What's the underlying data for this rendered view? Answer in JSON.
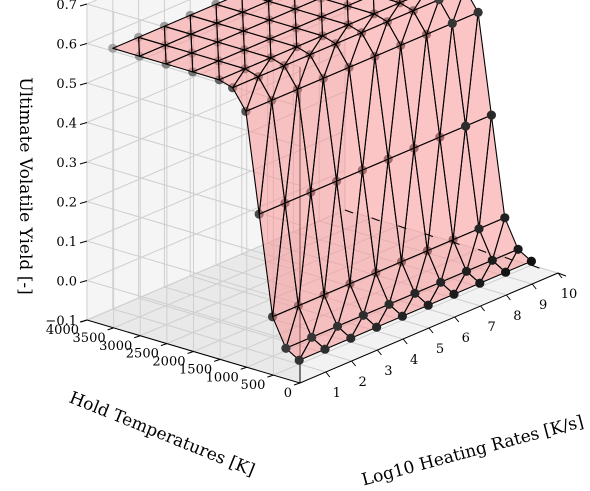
{
  "chart_data": {
    "type": "surface3d",
    "title": "",
    "xlabel": "Log10 Heating Rates [K/s]",
    "ylabel": "Hold Temperatures [K]",
    "zlabel": "Ultimate Volatile Yield [-]",
    "xlim": [
      0,
      10
    ],
    "ylim": [
      0,
      4000
    ],
    "zlim": [
      -0.1,
      0.7
    ],
    "x_ticks": [
      "1",
      "2",
      "3",
      "4",
      "5",
      "6",
      "7",
      "8",
      "9",
      "10"
    ],
    "y_ticks": [
      "0",
      "500",
      "1000",
      "1500",
      "2000",
      "2500",
      "3000",
      "3500",
      "4000"
    ],
    "z_ticks": [
      "−0.1",
      "0.0",
      "0.1",
      "0.2",
      "0.3",
      "0.4",
      "0.5",
      "0.6",
      "0.7"
    ],
    "grid": true,
    "surface": {
      "color": "#f08080",
      "edge_color": "#000000",
      "log10_heating_rate": [
        1,
        2,
        3,
        4,
        5,
        6,
        7,
        8,
        9,
        10
      ],
      "hold_temperature_K": [
        500,
        750,
        1000,
        1250,
        1500,
        1750,
        2000,
        2500,
        3000,
        3500,
        4000
      ],
      "yield_by_temperature": [
        -0.09,
        -0.07,
        0.0,
        0.25,
        0.5,
        0.55,
        0.56,
        0.56,
        0.56,
        0.56,
        0.56
      ]
    },
    "scatter": {
      "color": "#000000",
      "log10_heating_rate": [
        1,
        2,
        3,
        4,
        5,
        6,
        7,
        8,
        9,
        10
      ],
      "hold_temperature_K": [
        500,
        750,
        1000,
        1250,
        1500,
        1750,
        2000,
        2500,
        3000,
        3500,
        4000
      ],
      "yield_by_temperature": [
        -0.09,
        -0.07,
        0.0,
        0.25,
        0.5,
        0.55,
        0.56,
        0.56,
        0.56,
        0.56,
        0.56
      ]
    }
  }
}
